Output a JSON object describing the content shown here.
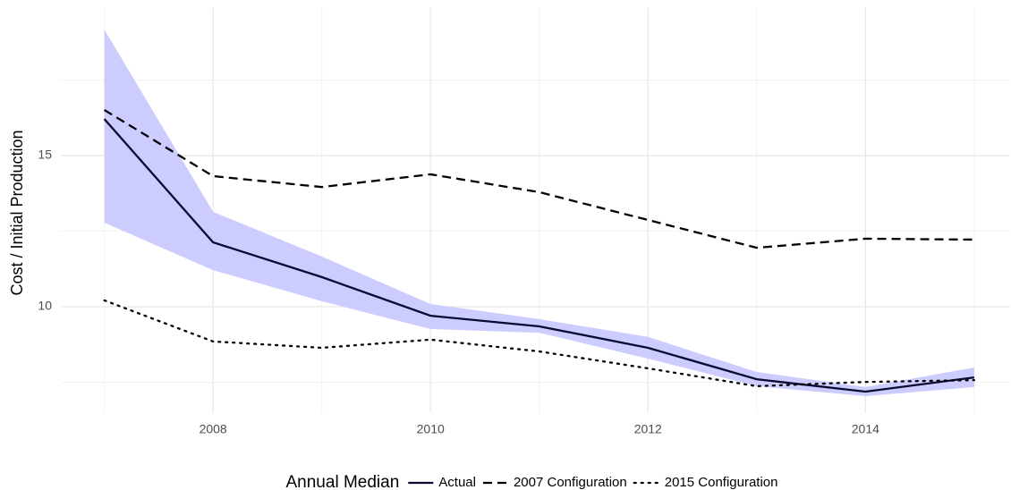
{
  "chart_data": {
    "type": "line",
    "y_label": "Cost / Initial Production",
    "legend_title": "Annual Median",
    "legend": "bottom",
    "grid": true,
    "x": [
      2007,
      2008,
      2009,
      2010,
      2011,
      2012,
      2013,
      2014,
      2015
    ],
    "ribbon": {
      "color": "#ccccff",
      "upper": [
        19.17,
        13.14,
        11.66,
        10.09,
        9.59,
        9.0,
        7.84,
        7.34,
        7.99
      ],
      "lower": [
        12.78,
        11.21,
        10.18,
        9.26,
        9.14,
        8.28,
        7.37,
        7.04,
        7.34
      ]
    },
    "series": [
      {
        "name": "Actual",
        "color": "#0a0a30",
        "dash": "solid",
        "values": [
          16.21,
          12.13,
          10.98,
          9.7,
          9.35,
          8.64,
          7.6,
          7.19,
          7.66
        ]
      },
      {
        "name": "2007 Configuration",
        "color": "#000000",
        "dash": "dashed",
        "values": [
          16.51,
          14.32,
          13.96,
          14.38,
          13.79,
          12.87,
          11.95,
          12.25,
          12.22
        ]
      },
      {
        "name": "2015 Configuration",
        "color": "#000000",
        "dash": "dotted",
        "values": [
          10.21,
          8.85,
          8.64,
          8.91,
          8.52,
          7.96,
          7.37,
          7.51,
          7.57
        ]
      }
    ],
    "xlim": [
      2006.6,
      2015.33
    ],
    "ylim": [
      6.5,
      19.9
    ],
    "xticks": [
      2008,
      2010,
      2012,
      2014
    ],
    "yticks": [
      10,
      15
    ],
    "x_minor_grid": [
      2007,
      2009,
      2011,
      2013,
      2015
    ],
    "y_minor_grid": [
      7.5,
      12.5,
      17.5
    ]
  }
}
